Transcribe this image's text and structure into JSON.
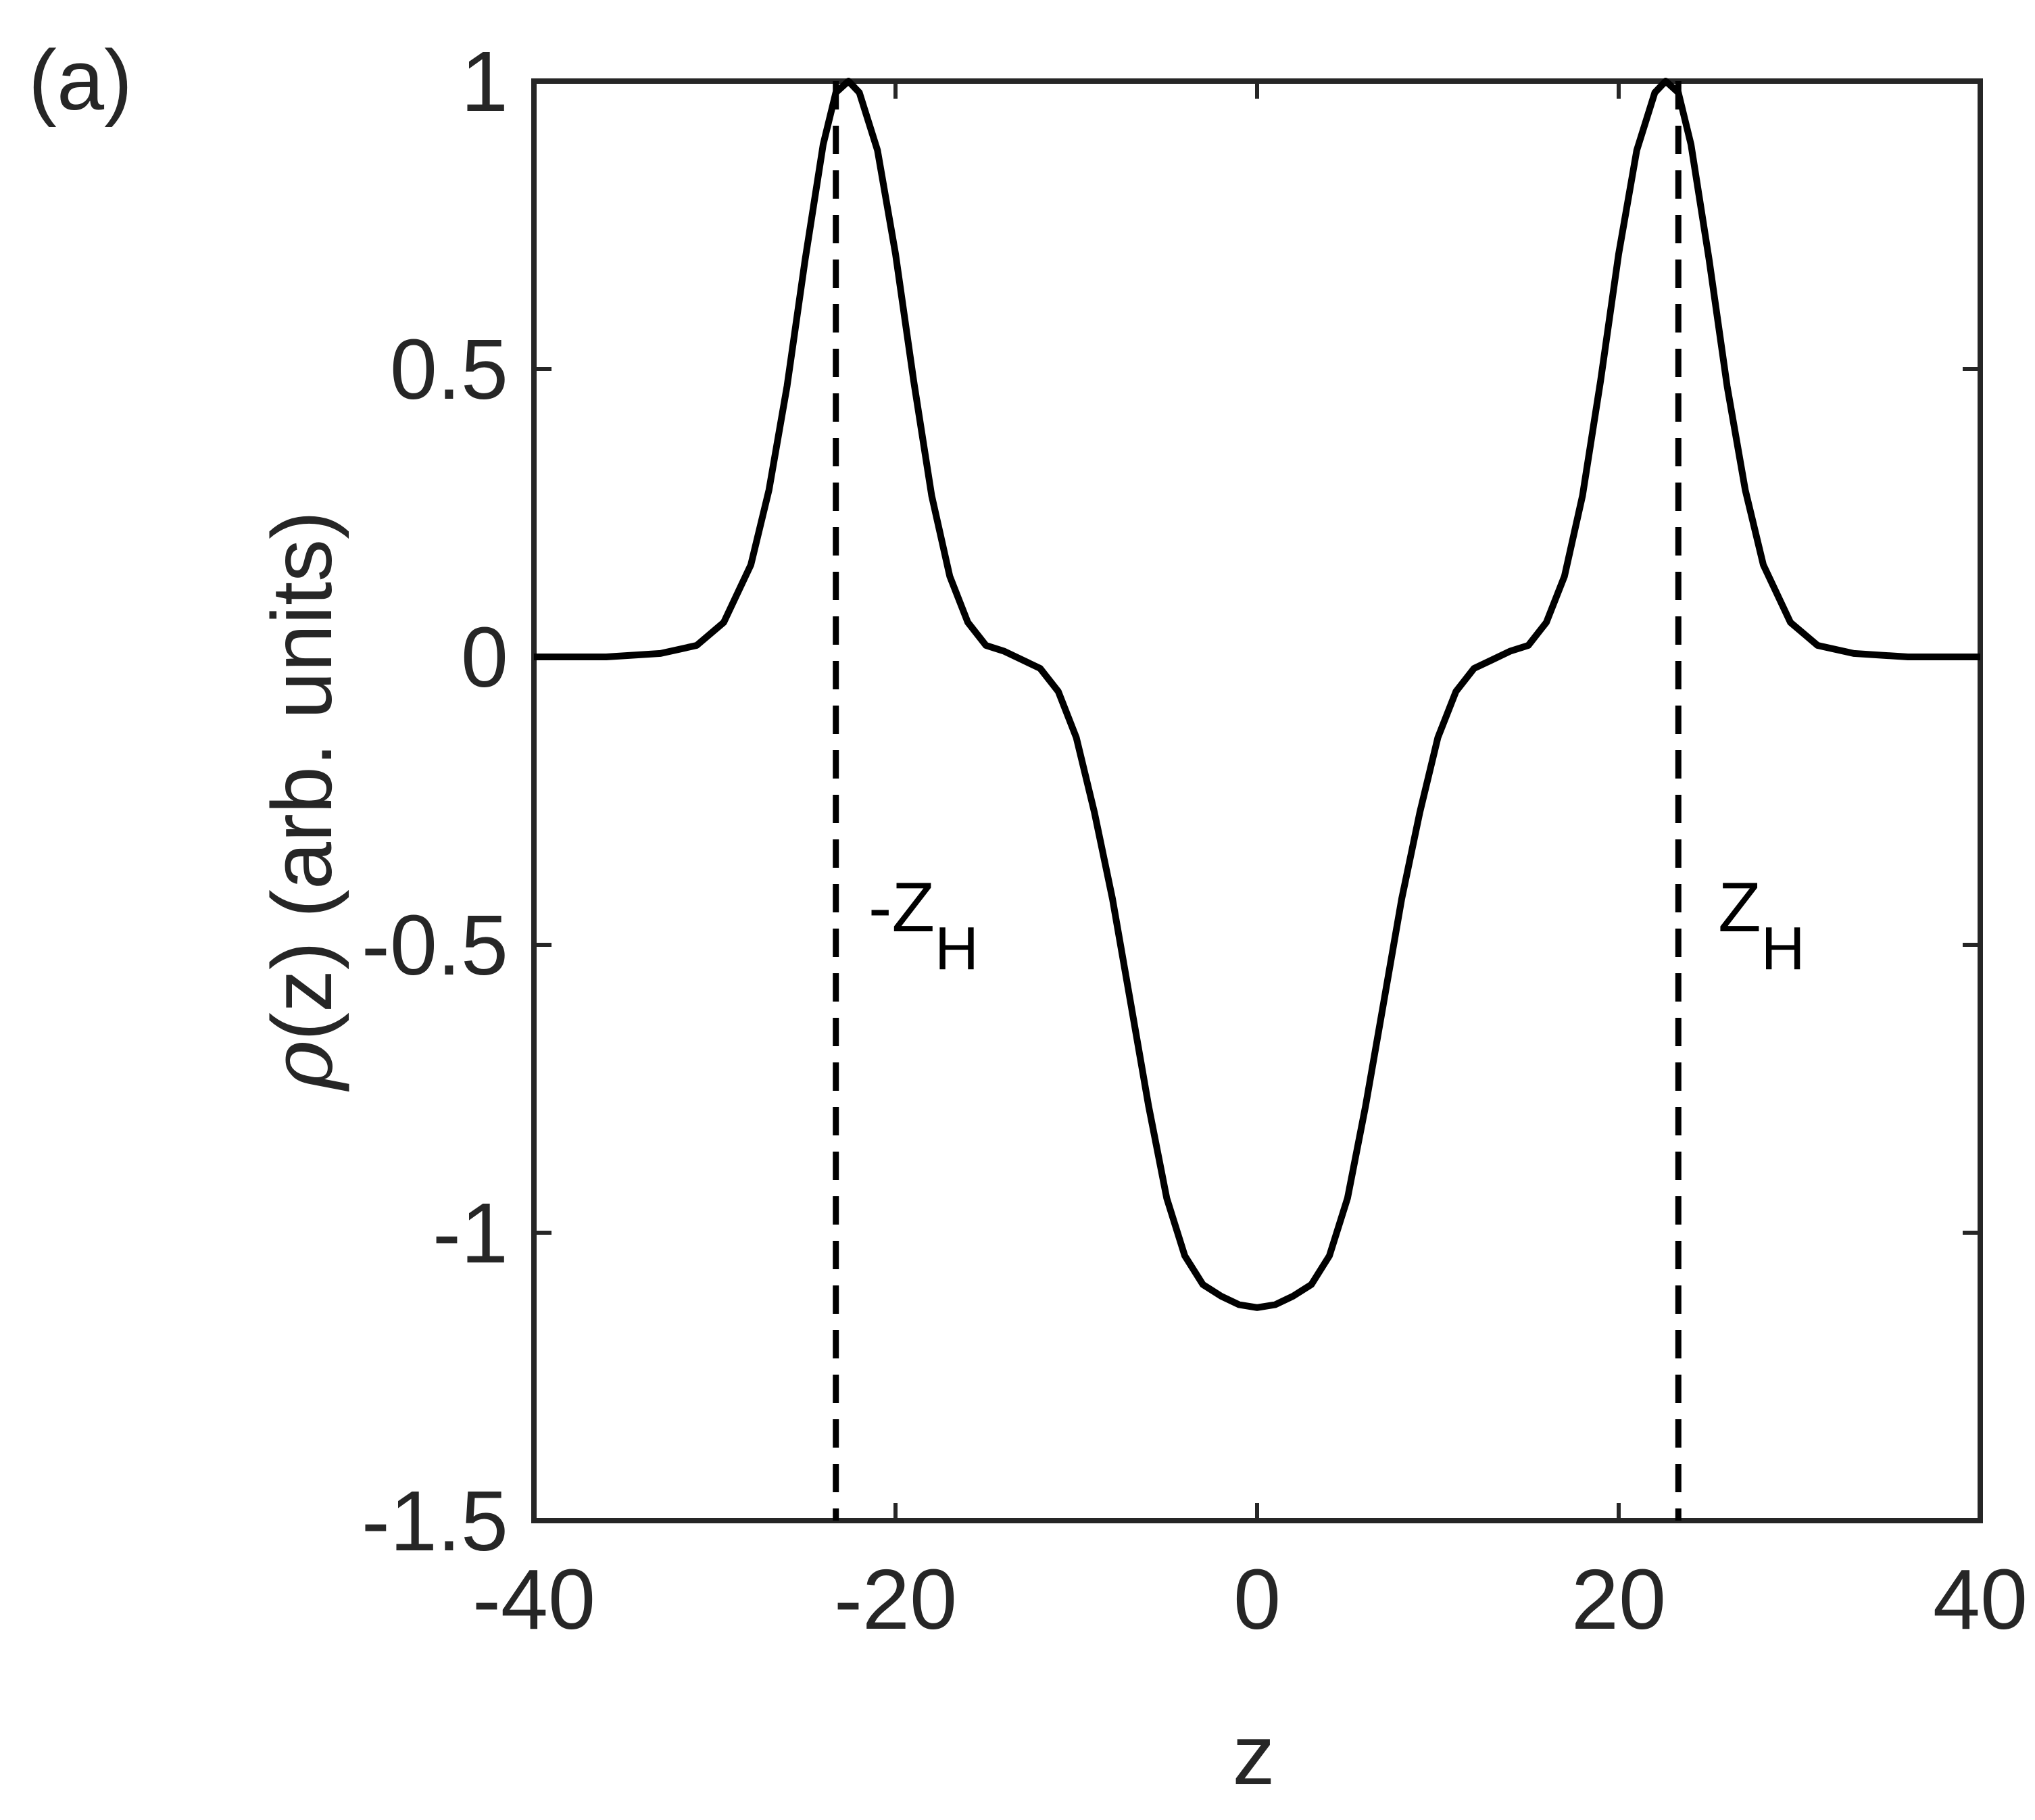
{
  "figure": {
    "panel_label": "(a)"
  },
  "chart_data": {
    "type": "line",
    "title": "",
    "xlabel": "z",
    "ylabel_symbol": "ρ",
    "ylabel_rest": "(z) (arb. units)",
    "xlim": [
      -40,
      40
    ],
    "ylim": [
      -1.5,
      1
    ],
    "grid": false,
    "x_ticks": [
      -40,
      -20,
      0,
      20,
      40
    ],
    "x_tick_labels": [
      "-40",
      "-20",
      "0",
      "20",
      "40"
    ],
    "y_ticks": [
      -1.5,
      -1,
      -0.5,
      0,
      0.5,
      1
    ],
    "y_tick_labels": [
      "-1.5",
      "-1",
      "-0.5",
      "0",
      "0.5",
      "1"
    ],
    "series": [
      {
        "name": "rho(z)",
        "color": "#000000",
        "style": "solid",
        "x": [
          -40,
          -36,
          -33,
          -31,
          -29.5,
          -28,
          -27,
          -26,
          -25,
          -24,
          -23.3,
          -22.6,
          -22,
          -21,
          -20,
          -19,
          -18,
          -17,
          -16,
          -15,
          -14,
          -13,
          -12,
          -11,
          -10,
          -9,
          -8,
          -7,
          -6,
          -5,
          -4,
          -3,
          -2,
          -1,
          0,
          1,
          2,
          3,
          4,
          5,
          6,
          7,
          8,
          9,
          10,
          11,
          12,
          13,
          14,
          15,
          16,
          17,
          18,
          19,
          20,
          21,
          22,
          22.6,
          23.3,
          24,
          25,
          26,
          27,
          28,
          29.5,
          31,
          33,
          36,
          40
        ],
        "y": [
          0,
          0,
          0.006,
          0.02,
          0.06,
          0.16,
          0.29,
          0.47,
          0.69,
          0.89,
          0.98,
          1.0,
          0.98,
          0.88,
          0.7,
          0.48,
          0.28,
          0.14,
          0.06,
          0.02,
          0.01,
          -0.005,
          -0.02,
          -0.06,
          -0.14,
          -0.27,
          -0.42,
          -0.6,
          -0.78,
          -0.94,
          -1.04,
          -1.09,
          -1.11,
          -1.125,
          -1.13,
          -1.125,
          -1.11,
          -1.09,
          -1.04,
          -0.94,
          -0.78,
          -0.6,
          -0.42,
          -0.27,
          -0.14,
          -0.06,
          -0.02,
          -0.005,
          0.01,
          0.02,
          0.06,
          0.14,
          0.28,
          0.48,
          0.7,
          0.88,
          0.98,
          1.0,
          0.98,
          0.89,
          0.69,
          0.47,
          0.29,
          0.16,
          0.06,
          0.02,
          0.006,
          0,
          0
        ]
      }
    ],
    "vertical_lines": [
      {
        "name": "-Z_H",
        "x": -23.3,
        "style": "dashed",
        "color": "#000000"
      },
      {
        "name": "Z_H",
        "x": 23.3,
        "style": "dashed",
        "color": "#000000"
      }
    ],
    "annotations": [
      {
        "name": "neg-zh",
        "main": "-Z",
        "sub": "H",
        "x": -21.5,
        "y": -0.5
      },
      {
        "name": "pos-zh",
        "main": "Z",
        "sub": "H",
        "x": 25.5,
        "y": -0.5
      }
    ]
  }
}
